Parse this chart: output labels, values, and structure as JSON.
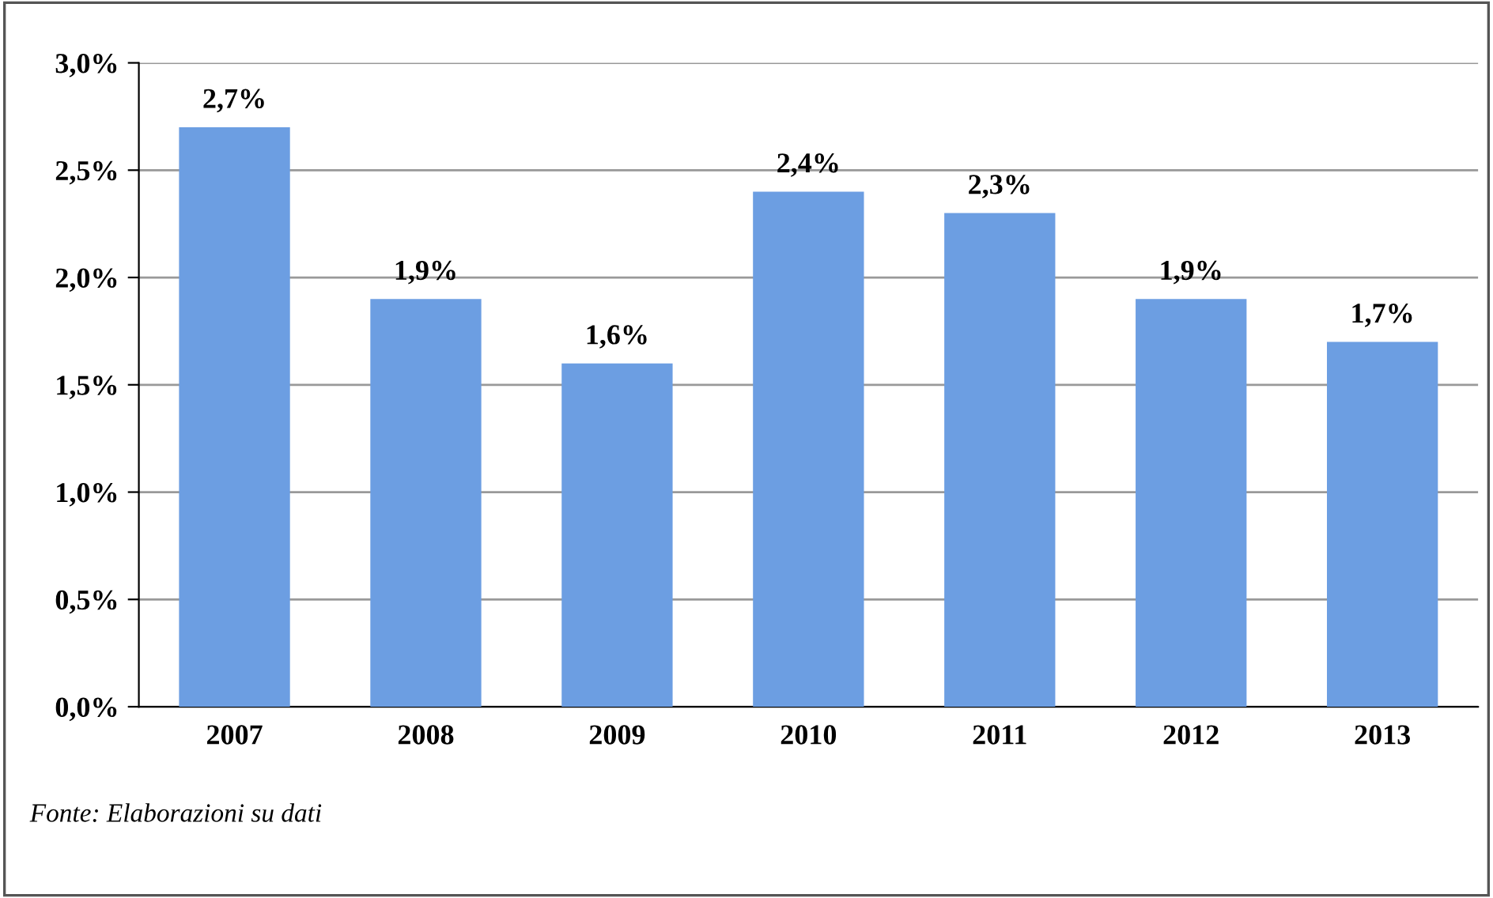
{
  "chart_data": {
    "type": "bar",
    "categories": [
      "2007",
      "2008",
      "2009",
      "2010",
      "2011",
      "2012",
      "2013"
    ],
    "values": [
      2.7,
      1.9,
      1.6,
      2.4,
      2.3,
      1.9,
      1.7
    ],
    "value_labels": [
      "2,7%",
      "1,9%",
      "1,6%",
      "2,4%",
      "2,3%",
      "1,9%",
      "1,7%"
    ],
    "color": "#6c9ee2",
    "ylim": [
      0,
      3.0
    ],
    "yticks": [
      {
        "value": 0,
        "label": "0,0%"
      },
      {
        "value": 0.5,
        "label": "0,5%"
      },
      {
        "value": 1.0,
        "label": "1,0%"
      },
      {
        "value": 1.5,
        "label": "1,5%"
      },
      {
        "value": 2.0,
        "label": "2,0%"
      },
      {
        "value": 2.5,
        "label": "2,5%"
      },
      {
        "value": 3.0,
        "label": "3,0%"
      }
    ],
    "grid": "y",
    "annotations": [
      "Fonte: Elaborazioni su dati"
    ]
  }
}
